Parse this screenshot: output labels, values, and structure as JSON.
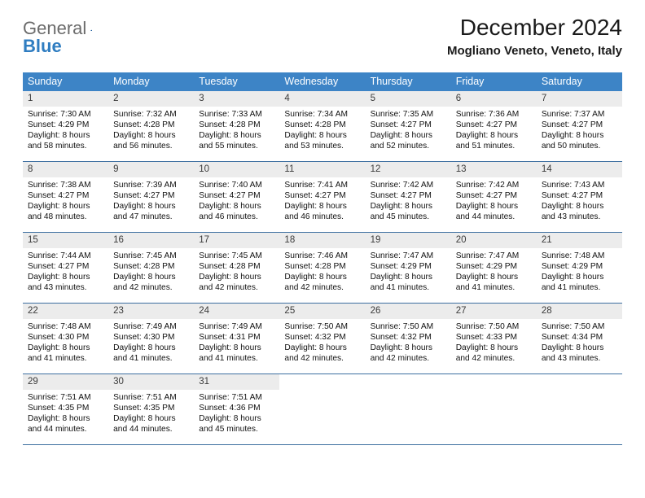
{
  "logo": {
    "word1": "General",
    "word2": "Blue"
  },
  "header": {
    "title": "December 2024",
    "location": "Mogliano Veneto, Veneto, Italy"
  },
  "colors": {
    "header_bar": "#3d84c6",
    "week_rule": "#3d6fa0",
    "daynum_bg": "#ececec",
    "logo_gray": "#6b6b6b",
    "logo_blue": "#2f7dc1"
  },
  "weekdays": [
    "Sunday",
    "Monday",
    "Tuesday",
    "Wednesday",
    "Thursday",
    "Friday",
    "Saturday"
  ],
  "weeks": [
    [
      {
        "n": "1",
        "sr": "Sunrise: 7:30 AM",
        "ss": "Sunset: 4:29 PM",
        "dl": "Daylight: 8 hours and 58 minutes."
      },
      {
        "n": "2",
        "sr": "Sunrise: 7:32 AM",
        "ss": "Sunset: 4:28 PM",
        "dl": "Daylight: 8 hours and 56 minutes."
      },
      {
        "n": "3",
        "sr": "Sunrise: 7:33 AM",
        "ss": "Sunset: 4:28 PM",
        "dl": "Daylight: 8 hours and 55 minutes."
      },
      {
        "n": "4",
        "sr": "Sunrise: 7:34 AM",
        "ss": "Sunset: 4:28 PM",
        "dl": "Daylight: 8 hours and 53 minutes."
      },
      {
        "n": "5",
        "sr": "Sunrise: 7:35 AM",
        "ss": "Sunset: 4:27 PM",
        "dl": "Daylight: 8 hours and 52 minutes."
      },
      {
        "n": "6",
        "sr": "Sunrise: 7:36 AM",
        "ss": "Sunset: 4:27 PM",
        "dl": "Daylight: 8 hours and 51 minutes."
      },
      {
        "n": "7",
        "sr": "Sunrise: 7:37 AM",
        "ss": "Sunset: 4:27 PM",
        "dl": "Daylight: 8 hours and 50 minutes."
      }
    ],
    [
      {
        "n": "8",
        "sr": "Sunrise: 7:38 AM",
        "ss": "Sunset: 4:27 PM",
        "dl": "Daylight: 8 hours and 48 minutes."
      },
      {
        "n": "9",
        "sr": "Sunrise: 7:39 AM",
        "ss": "Sunset: 4:27 PM",
        "dl": "Daylight: 8 hours and 47 minutes."
      },
      {
        "n": "10",
        "sr": "Sunrise: 7:40 AM",
        "ss": "Sunset: 4:27 PM",
        "dl": "Daylight: 8 hours and 46 minutes."
      },
      {
        "n": "11",
        "sr": "Sunrise: 7:41 AM",
        "ss": "Sunset: 4:27 PM",
        "dl": "Daylight: 8 hours and 46 minutes."
      },
      {
        "n": "12",
        "sr": "Sunrise: 7:42 AM",
        "ss": "Sunset: 4:27 PM",
        "dl": "Daylight: 8 hours and 45 minutes."
      },
      {
        "n": "13",
        "sr": "Sunrise: 7:42 AM",
        "ss": "Sunset: 4:27 PM",
        "dl": "Daylight: 8 hours and 44 minutes."
      },
      {
        "n": "14",
        "sr": "Sunrise: 7:43 AM",
        "ss": "Sunset: 4:27 PM",
        "dl": "Daylight: 8 hours and 43 minutes."
      }
    ],
    [
      {
        "n": "15",
        "sr": "Sunrise: 7:44 AM",
        "ss": "Sunset: 4:27 PM",
        "dl": "Daylight: 8 hours and 43 minutes."
      },
      {
        "n": "16",
        "sr": "Sunrise: 7:45 AM",
        "ss": "Sunset: 4:28 PM",
        "dl": "Daylight: 8 hours and 42 minutes."
      },
      {
        "n": "17",
        "sr": "Sunrise: 7:45 AM",
        "ss": "Sunset: 4:28 PM",
        "dl": "Daylight: 8 hours and 42 minutes."
      },
      {
        "n": "18",
        "sr": "Sunrise: 7:46 AM",
        "ss": "Sunset: 4:28 PM",
        "dl": "Daylight: 8 hours and 42 minutes."
      },
      {
        "n": "19",
        "sr": "Sunrise: 7:47 AM",
        "ss": "Sunset: 4:29 PM",
        "dl": "Daylight: 8 hours and 41 minutes."
      },
      {
        "n": "20",
        "sr": "Sunrise: 7:47 AM",
        "ss": "Sunset: 4:29 PM",
        "dl": "Daylight: 8 hours and 41 minutes."
      },
      {
        "n": "21",
        "sr": "Sunrise: 7:48 AM",
        "ss": "Sunset: 4:29 PM",
        "dl": "Daylight: 8 hours and 41 minutes."
      }
    ],
    [
      {
        "n": "22",
        "sr": "Sunrise: 7:48 AM",
        "ss": "Sunset: 4:30 PM",
        "dl": "Daylight: 8 hours and 41 minutes."
      },
      {
        "n": "23",
        "sr": "Sunrise: 7:49 AM",
        "ss": "Sunset: 4:30 PM",
        "dl": "Daylight: 8 hours and 41 minutes."
      },
      {
        "n": "24",
        "sr": "Sunrise: 7:49 AM",
        "ss": "Sunset: 4:31 PM",
        "dl": "Daylight: 8 hours and 41 minutes."
      },
      {
        "n": "25",
        "sr": "Sunrise: 7:50 AM",
        "ss": "Sunset: 4:32 PM",
        "dl": "Daylight: 8 hours and 42 minutes."
      },
      {
        "n": "26",
        "sr": "Sunrise: 7:50 AM",
        "ss": "Sunset: 4:32 PM",
        "dl": "Daylight: 8 hours and 42 minutes."
      },
      {
        "n": "27",
        "sr": "Sunrise: 7:50 AM",
        "ss": "Sunset: 4:33 PM",
        "dl": "Daylight: 8 hours and 42 minutes."
      },
      {
        "n": "28",
        "sr": "Sunrise: 7:50 AM",
        "ss": "Sunset: 4:34 PM",
        "dl": "Daylight: 8 hours and 43 minutes."
      }
    ],
    [
      {
        "n": "29",
        "sr": "Sunrise: 7:51 AM",
        "ss": "Sunset: 4:35 PM",
        "dl": "Daylight: 8 hours and 44 minutes."
      },
      {
        "n": "30",
        "sr": "Sunrise: 7:51 AM",
        "ss": "Sunset: 4:35 PM",
        "dl": "Daylight: 8 hours and 44 minutes."
      },
      {
        "n": "31",
        "sr": "Sunrise: 7:51 AM",
        "ss": "Sunset: 4:36 PM",
        "dl": "Daylight: 8 hours and 45 minutes."
      },
      {
        "empty": true
      },
      {
        "empty": true
      },
      {
        "empty": true
      },
      {
        "empty": true
      }
    ]
  ]
}
